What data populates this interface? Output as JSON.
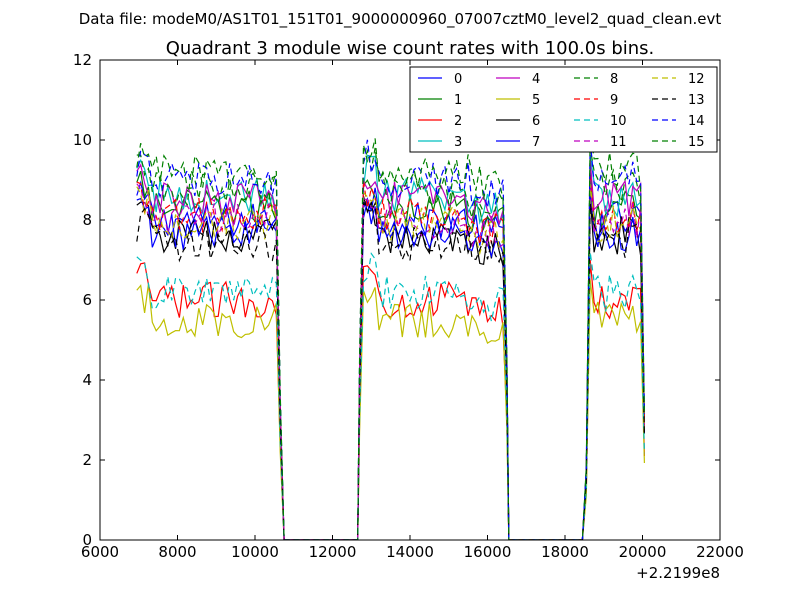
{
  "suptitle": "Data file: modeM0/AS1T01_151T01_9000000960_07007cztM0_level2_quad_clean.evt",
  "chart_data": {
    "type": "line",
    "title": "Quadrant 3 module wise count rates with 100.0s bins.",
    "xlabel": "",
    "ylabel": "",
    "x_offset_label": "+2.2199e8",
    "xlim": [
      6000,
      22000
    ],
    "ylim": [
      0,
      12
    ],
    "x_ticks": [
      "6000",
      "8000",
      "10000",
      "12000",
      "14000",
      "16000",
      "18000",
      "20000",
      "22000"
    ],
    "y_ticks": [
      "0",
      "2",
      "4",
      "6",
      "8",
      "10",
      "12"
    ],
    "grid": false,
    "legend_position": "top-right",
    "segments": [
      {
        "start": 6950,
        "end": 10550,
        "drop_end": 10750
      },
      {
        "start": 12800,
        "end": 16400,
        "drop_start": 12650,
        "drop_end": 16550
      },
      {
        "start": 18650,
        "end": 20000,
        "drop_start": 18450,
        "drop_end": 20050
      }
    ],
    "series": [
      {
        "name": "0",
        "color": "#0000ff",
        "dashed": false,
        "level": 8.0
      },
      {
        "name": "1",
        "color": "#008000",
        "dashed": false,
        "level": 8.3
      },
      {
        "name": "2",
        "color": "#ff0000",
        "dashed": false,
        "level": 6.0
      },
      {
        "name": "3",
        "color": "#00bfbf",
        "dashed": false,
        "level": 8.6
      },
      {
        "name": "4",
        "color": "#bf00bf",
        "dashed": false,
        "level": 8.5
      },
      {
        "name": "5",
        "color": "#bfbf00",
        "dashed": false,
        "level": 5.5
      },
      {
        "name": "6",
        "color": "#000000",
        "dashed": false,
        "level": 7.6
      },
      {
        "name": "7",
        "color": "#0000ff",
        "dashed": false,
        "level": 7.7
      },
      {
        "name": "8",
        "color": "#008000",
        "dashed": true,
        "level": 8.8
      },
      {
        "name": "9",
        "color": "#ff0000",
        "dashed": true,
        "level": 8.1
      },
      {
        "name": "10",
        "color": "#00bfbf",
        "dashed": true,
        "level": 6.2
      },
      {
        "name": "11",
        "color": "#bf00bf",
        "dashed": true,
        "level": 8.0
      },
      {
        "name": "12",
        "color": "#bfbf00",
        "dashed": true,
        "level": 7.9
      },
      {
        "name": "13",
        "color": "#000000",
        "dashed": true,
        "level": 7.4
      },
      {
        "name": "14",
        "color": "#0000ff",
        "dashed": true,
        "level": 9.0
      },
      {
        "name": "15",
        "color": "#008000",
        "dashed": true,
        "level": 9.2
      }
    ]
  }
}
